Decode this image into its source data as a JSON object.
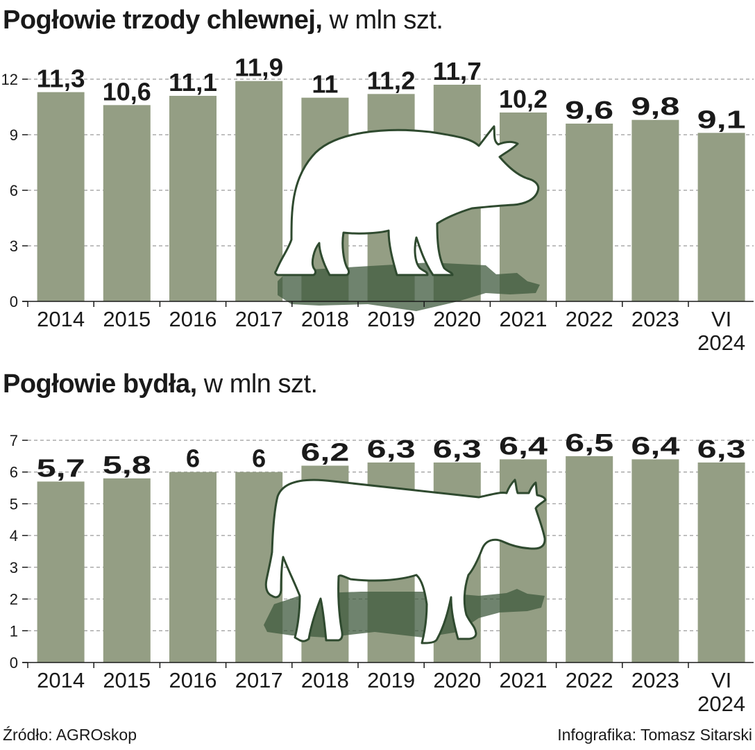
{
  "footer": {
    "source": "Źródło: AGROskop",
    "credit": "Infografika: Tomasz Sitarski"
  },
  "colors": {
    "bar": "#949e84",
    "grid": "#9a9a9a",
    "text": "#1a1a1a",
    "silhouette_outline": "#2f4a2f",
    "silhouette_shadow": "#3f5a3d"
  },
  "chart_data": [
    {
      "id": "pigs",
      "type": "bar",
      "title_bold": "Pogłowie trzody chlewnej,",
      "title_light": " w mln szt.",
      "categories": [
        "2014",
        "2015",
        "2016",
        "2017",
        "2018",
        "2019",
        "2020",
        "2021",
        "2022",
        "2023",
        "VI\n2024"
      ],
      "values": [
        11.3,
        10.6,
        11.1,
        11.9,
        11,
        11.2,
        11.7,
        10.2,
        9.6,
        9.8,
        9.1
      ],
      "value_labels": [
        "11,3",
        "10,6",
        "11,1",
        "11,9",
        "11",
        "11,2",
        "11,7",
        "10,2",
        "9,6",
        "9,8",
        "9,1"
      ],
      "ylim": [
        0,
        12
      ],
      "yticks": [
        0,
        3,
        6,
        9,
        12
      ],
      "grid": true,
      "icon": "pig-silhouette-icon"
    },
    {
      "id": "cattle",
      "type": "bar",
      "title_bold": "Pogłowie bydła,",
      "title_light": " w mln szt.",
      "categories": [
        "2014",
        "2015",
        "2016",
        "2017",
        "2018",
        "2019",
        "2020",
        "2021",
        "2022",
        "2023",
        "VI\n2024"
      ],
      "values": [
        5.7,
        5.8,
        6,
        6,
        6.2,
        6.3,
        6.3,
        6.4,
        6.5,
        6.4,
        6.3
      ],
      "value_labels": [
        "5,7",
        "5,8",
        "6",
        "6",
        "6,2",
        "6,3",
        "6,3",
        "6,4",
        "6,5",
        "6,4",
        "6,3"
      ],
      "ylim": [
        0,
        7
      ],
      "yticks": [
        0,
        1,
        2,
        3,
        4,
        5,
        6,
        7
      ],
      "grid": true,
      "icon": "cow-silhouette-icon"
    }
  ]
}
